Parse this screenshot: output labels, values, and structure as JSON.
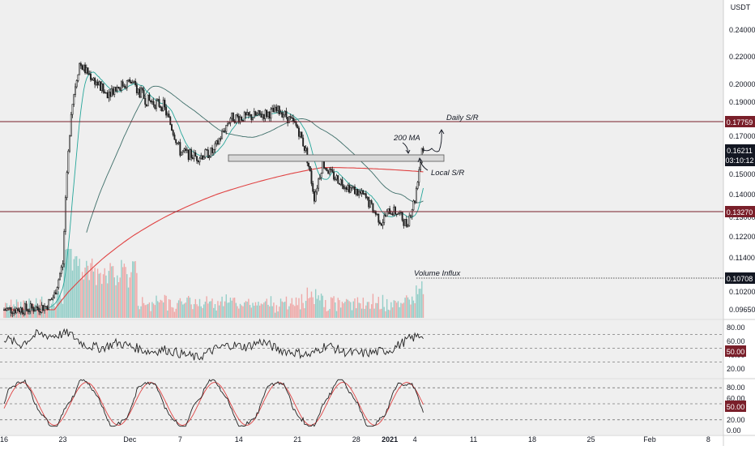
{
  "chart_data": [
    {
      "type": "line",
      "title": "",
      "ylabel": "USDT",
      "ylim": [
        0.092,
        0.255
      ],
      "grid": false,
      "yticks": [
        "0.24000",
        "0.22000",
        "0.20000",
        "0.19000",
        "0.17000",
        "0.15000",
        "0.14000",
        "0.13000",
        "0.12200",
        "0.11400",
        "0.10200",
        "0.09650"
      ],
      "xticks": [
        "16",
        "23",
        "Dec",
        "7",
        "14",
        "21",
        "28",
        "2021",
        "4",
        "11",
        "18",
        "25",
        "Feb",
        "8"
      ],
      "levels": {
        "daily_sr": "0.17759",
        "support": "0.13270",
        "volume_line": "0.10708"
      },
      "last_price": "0.16211",
      "countdown": "03:10:12",
      "price_anchor_dates": [
        "Nov 16",
        "Nov 19",
        "Nov 21",
        "Nov 22",
        "Nov 23",
        "Nov 24",
        "Nov 25",
        "Nov 26",
        "Nov 28",
        "Dec 1",
        "Dec 3",
        "Dec 5",
        "Dec 7",
        "Dec 9",
        "Dec 11",
        "Dec 13",
        "Dec 15",
        "Dec 17",
        "Dec 19",
        "Dec 20",
        "Dec 21",
        "Dec 22",
        "Dec 23",
        "Dec 24",
        "Dec 25",
        "Dec 27",
        "Dec 29",
        "Dec 31",
        "Jan 1",
        "Jan 2",
        "Jan 3",
        "Jan 4",
        "Jan 5"
      ],
      "price_anchors": [
        0.0965,
        0.0968,
        0.0975,
        0.101,
        0.112,
        0.185,
        0.215,
        0.208,
        0.195,
        0.202,
        0.191,
        0.188,
        0.162,
        0.159,
        0.162,
        0.181,
        0.181,
        0.183,
        0.185,
        0.18,
        0.175,
        0.162,
        0.139,
        0.156,
        0.15,
        0.144,
        0.139,
        0.128,
        0.133,
        0.132,
        0.127,
        0.138,
        0.168
      ],
      "series": [
        {
          "name": "200 MA",
          "color": "#e04343"
        }
      ],
      "annotations": [
        "Daily S/R",
        "200 MA",
        "Local S/R",
        "Volume Influx"
      ]
    },
    {
      "type": "line",
      "ylim": [
        20,
        80
      ],
      "yticks": [
        "80.00",
        "60.00",
        "40.00",
        "20.00"
      ],
      "guide_lines": [
        70,
        50,
        30
      ],
      "current_value": "50.00",
      "anchors": [
        65,
        55,
        70,
        68,
        72,
        55,
        50,
        58,
        52,
        45,
        48,
        42,
        36,
        48,
        55,
        52,
        60,
        48,
        44,
        40,
        55,
        45,
        42,
        44,
        48,
        62,
        70
      ]
    },
    {
      "type": "line",
      "ylim": [
        0,
        100
      ],
      "yticks": [
        "80.00",
        "60.00",
        "40.00",
        "20.00",
        "0.00"
      ],
      "guide_lines": [
        80,
        50,
        20
      ],
      "current_value": "50.00"
    }
  ],
  "colors": {
    "level": "#7a1f2a",
    "bull": "#26a69a",
    "bear": "#ef5350",
    "ma": "#e04343"
  }
}
